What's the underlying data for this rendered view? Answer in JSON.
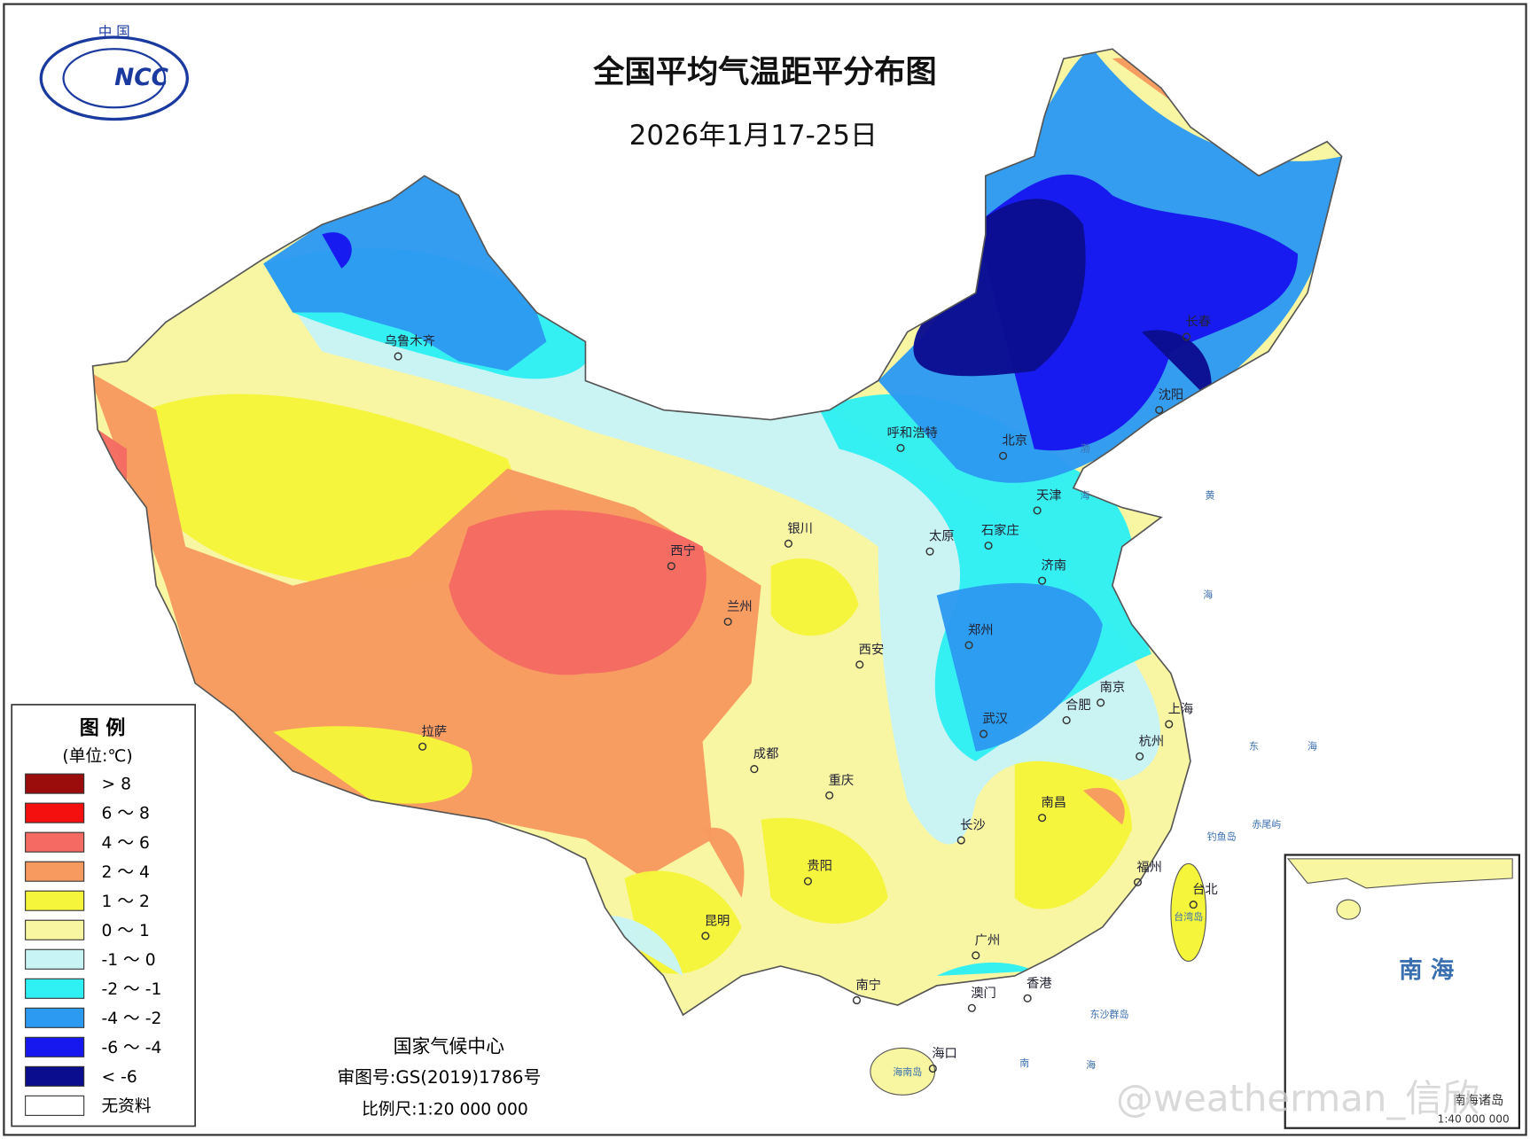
{
  "header": {
    "title": "全国平均气温距平分布图",
    "subtitle": "2026年1月17-25日",
    "logo_top": "中 国",
    "logo_text": "NCC"
  },
  "legend": {
    "title": "图 例",
    "unit": "(单位:℃)",
    "items": [
      {
        "label": "> 8",
        "color": "#9b0d0d"
      },
      {
        "label": "6 ～ 8",
        "color": "#f51010"
      },
      {
        "label": "4 ～ 6",
        "color": "#f56a62"
      },
      {
        "label": "2 ～ 4",
        "color": "#f79a60"
      },
      {
        "label": "1 ～ 2",
        "color": "#f5f53b"
      },
      {
        "label": "0 ～ 1",
        "color": "#f8f6a0"
      },
      {
        "label": "-1 ～ 0",
        "color": "#c8f4f6"
      },
      {
        "label": "-2 ～ -1",
        "color": "#2ff0f2"
      },
      {
        "label": "-4 ～ -2",
        "color": "#2d9af2"
      },
      {
        "label": "-6 ～ -4",
        "color": "#1717ef"
      },
      {
        "label": "< -6",
        "color": "#0b0d8f"
      },
      {
        "label": "无资料",
        "color": "#ffffff"
      }
    ]
  },
  "cities": [
    "乌鲁木齐",
    "呼和浩特",
    "北京",
    "长春",
    "沈阳",
    "天津",
    "银川",
    "太原",
    "石家庄",
    "西宁",
    "兰州",
    "济南",
    "郑州",
    "西安",
    "南京",
    "合肥",
    "上海",
    "拉萨",
    "武汉",
    "成都",
    "重庆",
    "杭州",
    "南昌",
    "长沙",
    "贵阳",
    "福州",
    "台北",
    "昆明",
    "广州",
    "南宁",
    "澳门",
    "香港",
    "海口"
  ],
  "seas": [
    "渤",
    "海",
    "黄",
    "海",
    "东",
    "海",
    "南",
    "海",
    "钓鱼岛",
    "赤尾屿",
    "台湾岛",
    "东沙群岛",
    "海南岛"
  ],
  "inset": {
    "label": "南 海",
    "caption": "南海诸岛",
    "scale": "1:40 000 000"
  },
  "footer": {
    "agency": "国家气候中心",
    "approval": "审图号:GS(2019)1786号",
    "scale": "比例尺:1:20 000 000"
  },
  "watermark": "@weatherman_信欣"
}
